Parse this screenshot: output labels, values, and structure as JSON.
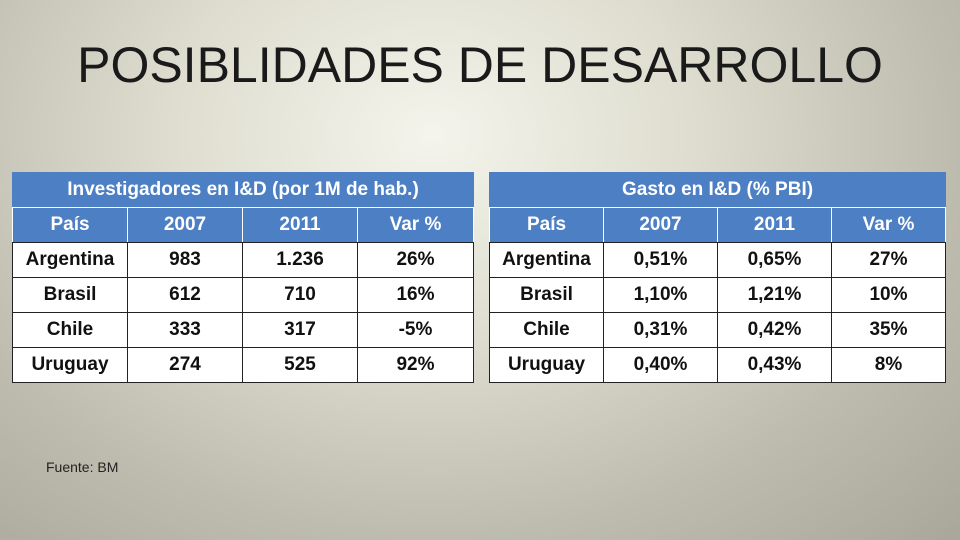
{
  "slide": {
    "title": "POSIBLIDADES DE DESARROLLO",
    "source": "Fuente: BM"
  },
  "tables": {
    "researchers": {
      "caption": "Investigadores en I&D  (por 1M de hab.)",
      "headers": [
        "País",
        "2007",
        "2011",
        "Var %"
      ],
      "rows": [
        [
          "Argentina",
          "983",
          "1.236",
          "26%"
        ],
        [
          "Brasil",
          "612",
          "710",
          "16%"
        ],
        [
          "Chile",
          "333",
          "317",
          "-5%"
        ],
        [
          "Uruguay",
          "274",
          "525",
          "92%"
        ]
      ]
    },
    "spending": {
      "caption": "Gasto en I&D (% PBI)",
      "headers": [
        "País",
        "2007",
        "2011",
        "Var %"
      ],
      "rows": [
        [
          "Argentina",
          "0,51%",
          "0,65%",
          "27%"
        ],
        [
          "Brasil",
          "1,10%",
          "1,21%",
          "10%"
        ],
        [
          "Chile",
          "0,31%",
          "0,42%",
          "35%"
        ],
        [
          "Uruguay",
          "0,40%",
          "0,43%",
          "8%"
        ]
      ]
    }
  },
  "colors": {
    "header_fill": "#4d7fc4",
    "header_text": "#ffffff",
    "cell_fill": "#ffffff"
  }
}
